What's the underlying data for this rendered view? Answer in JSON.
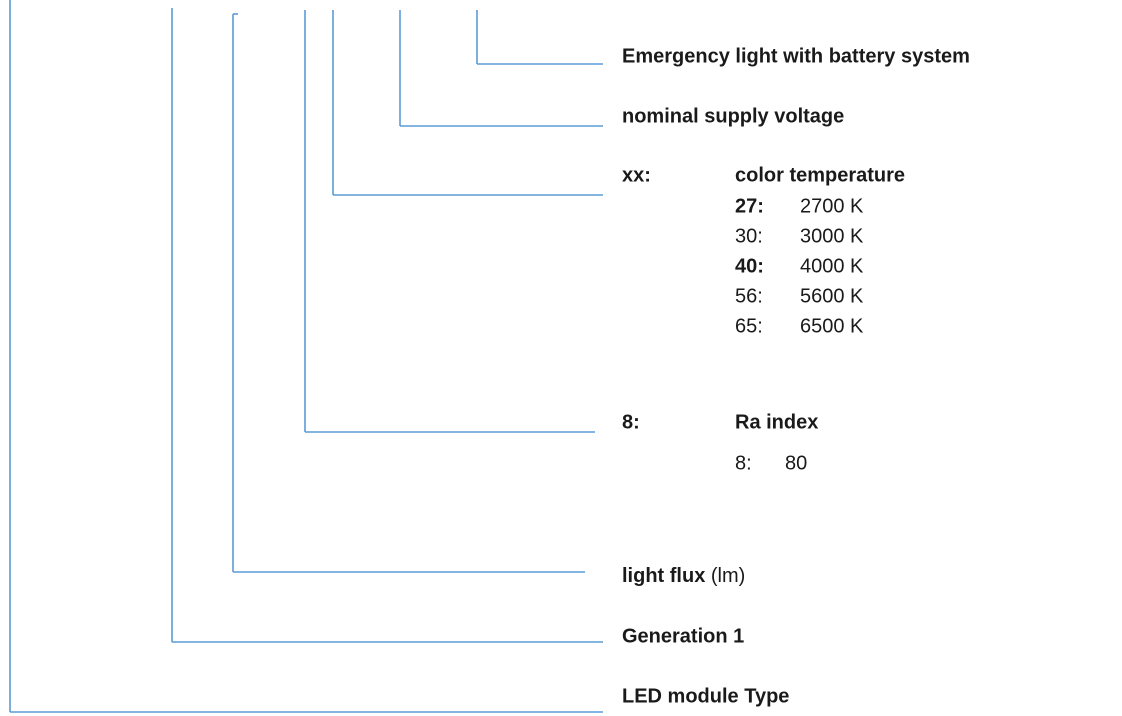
{
  "items": [
    {
      "label": "Emergency light with battery system"
    },
    {
      "label": "nominal supply voltage"
    },
    {
      "code": "xx:",
      "label": "color temperature",
      "options": [
        {
          "code": "27:",
          "value": "2700 K"
        },
        {
          "code": "30:",
          "value": "3000 K"
        },
        {
          "code": "40:",
          "value": "4000 K"
        },
        {
          "code": "56:",
          "value": "5600 K"
        },
        {
          "code": "65:",
          "value": "6500 K"
        }
      ]
    },
    {
      "code": "8:",
      "label": "Ra index",
      "options": [
        {
          "code": "8:",
          "value": "80"
        }
      ]
    },
    {
      "label": "light flux",
      "unit": "(lm)"
    },
    {
      "label": "Generation 1"
    },
    {
      "label": "LED module Type"
    }
  ]
}
